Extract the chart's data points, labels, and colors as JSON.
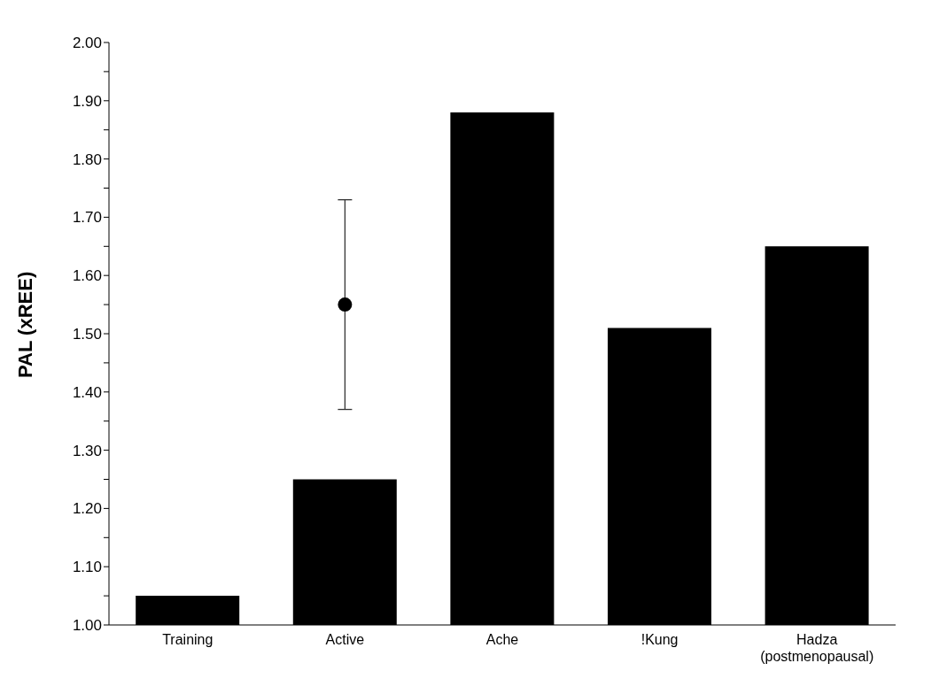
{
  "chart_data": {
    "type": "bar",
    "ylabel": "PAL (xREE)",
    "categories": [
      "Training",
      "Active",
      "Ache",
      "!Kung",
      "Hadza (postmenopausal)"
    ],
    "series": [
      {
        "color": "#000000",
        "values": [
          1.05,
          1.25,
          1.88,
          1.51,
          1.65
        ]
      },
      {
        "type": "scatter",
        "color": "#000000",
        "marker": "circle",
        "x": [
          "Active"
        ],
        "values": [
          1.55
        ],
        "errors": [
          [
            1.37,
            1.73
          ]
        ]
      }
    ],
    "ylim": [
      1.0,
      2.0
    ],
    "yticks": [
      {
        "value": 1.0,
        "label": "1.00"
      },
      {
        "value": 1.05,
        "label": null
      },
      {
        "value": 1.1,
        "label": "1.10"
      },
      {
        "value": 1.15,
        "label": null
      },
      {
        "value": 1.2,
        "label": "1.20"
      },
      {
        "value": 1.25,
        "label": null
      },
      {
        "value": 1.3,
        "label": "1.30"
      },
      {
        "value": 1.35,
        "label": null
      },
      {
        "value": 1.4,
        "label": "1.40"
      },
      {
        "value": 1.45,
        "label": null
      },
      {
        "value": 1.5,
        "label": "1.50"
      },
      {
        "value": 1.55,
        "label": null
      },
      {
        "value": 1.6,
        "label": "1.60"
      },
      {
        "value": 1.65,
        "label": null
      },
      {
        "value": 1.7,
        "label": "1.70"
      },
      {
        "value": 1.75,
        "label": null
      },
      {
        "value": 1.8,
        "label": "1.80"
      },
      {
        "value": 1.85,
        "label": null
      },
      {
        "value": 1.9,
        "label": "1.90"
      },
      {
        "value": 1.95,
        "label": null
      },
      {
        "value": 2.0,
        "label": "2.00"
      }
    ],
    "grid": false,
    "legend": false
  }
}
